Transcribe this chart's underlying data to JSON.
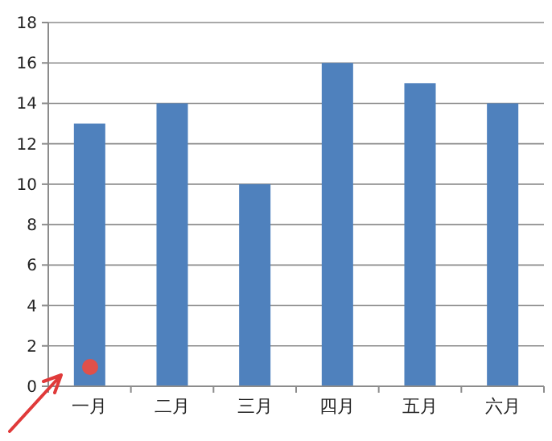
{
  "chart_data": {
    "type": "bar",
    "categories": [
      "一月",
      "二月",
      "三月",
      "四月",
      "五月",
      "六月"
    ],
    "values": [
      13,
      14,
      10,
      16,
      15,
      14
    ],
    "color": "#4f81bd",
    "ylim": [
      0,
      18
    ],
    "yticks": [
      0,
      2,
      4,
      6,
      8,
      10,
      12,
      14,
      16,
      18
    ],
    "grid": "y"
  }
}
